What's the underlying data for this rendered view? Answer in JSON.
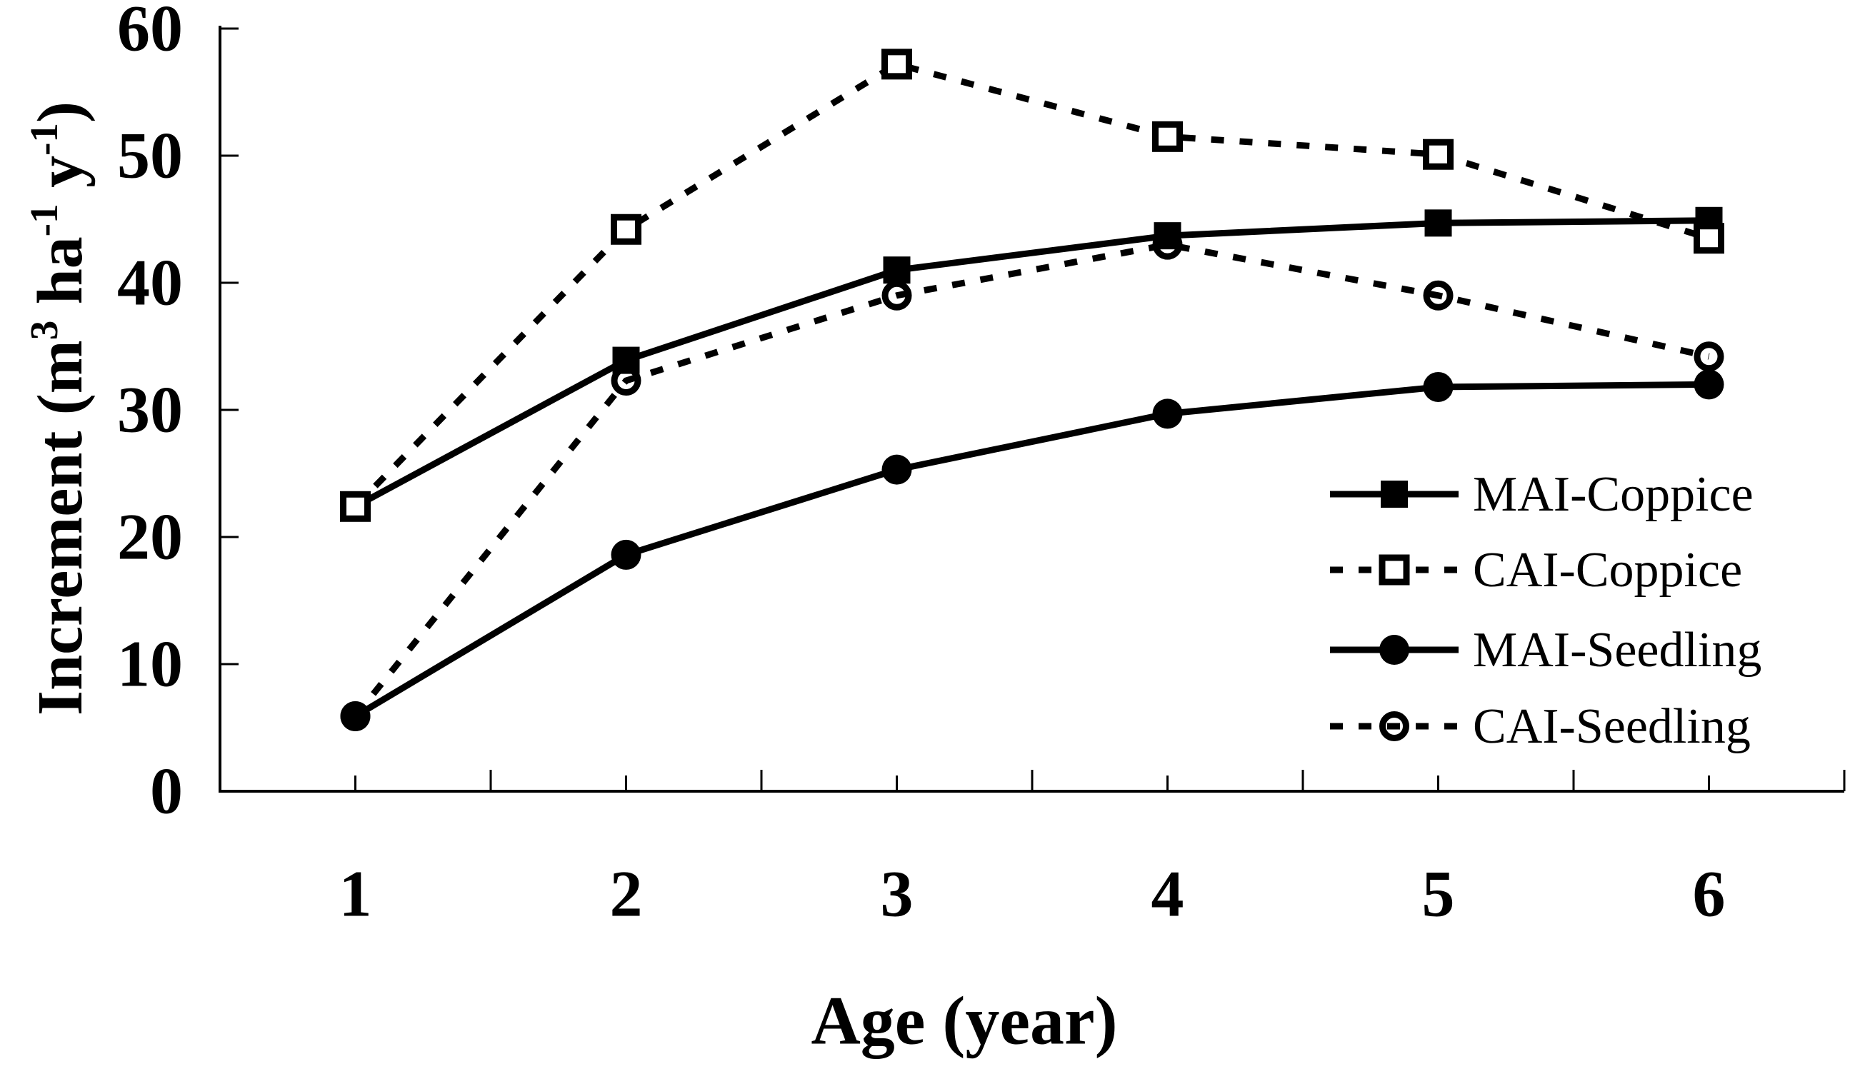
{
  "chart_data": {
    "type": "line",
    "title": "",
    "xlabel": "Age (year)",
    "ylabel": "Increment (m3 ha-1 y-1)",
    "ylabel_parts": [
      {
        "t": "Increment (m"
      },
      {
        "t": "3",
        "sup": true
      },
      {
        "t": " ha"
      },
      {
        "t": "-1",
        "sup": true
      },
      {
        "t": " y"
      },
      {
        "t": "-1",
        "sup": true
      },
      {
        "t": ")"
      }
    ],
    "x": [
      1,
      2,
      3,
      4,
      5,
      6
    ],
    "xlim": [
      0.5,
      6.5
    ],
    "ylim": [
      0,
      60
    ],
    "yticks": [
      0,
      10,
      20,
      30,
      40,
      50,
      60
    ],
    "xtick_labels": [
      "1",
      "2",
      "3",
      "4",
      "5",
      "6"
    ],
    "grid": false,
    "legend_position": "inside-right-middle",
    "series": [
      {
        "name": "MAI-Coppice",
        "line": "solid",
        "marker": "filled-square",
        "values": [
          22.4,
          33.9,
          41.0,
          43.7,
          44.7,
          44.9
        ]
      },
      {
        "name": "CAI-Coppice",
        "line": "dashed",
        "marker": "open-square",
        "values": [
          22.4,
          44.2,
          57.2,
          51.5,
          50.1,
          43.5
        ]
      },
      {
        "name": "MAI-Seedling",
        "line": "solid",
        "marker": "filled-circle",
        "values": [
          5.9,
          18.6,
          25.3,
          29.7,
          31.8,
          32.0
        ]
      },
      {
        "name": "CAI-Seedling",
        "line": "dashed",
        "marker": "open-circle",
        "values": [
          5.9,
          32.3,
          39.0,
          43.0,
          39.0,
          34.2
        ]
      }
    ],
    "colors": {
      "foreground": "#000000",
      "background": "#ffffff"
    }
  }
}
